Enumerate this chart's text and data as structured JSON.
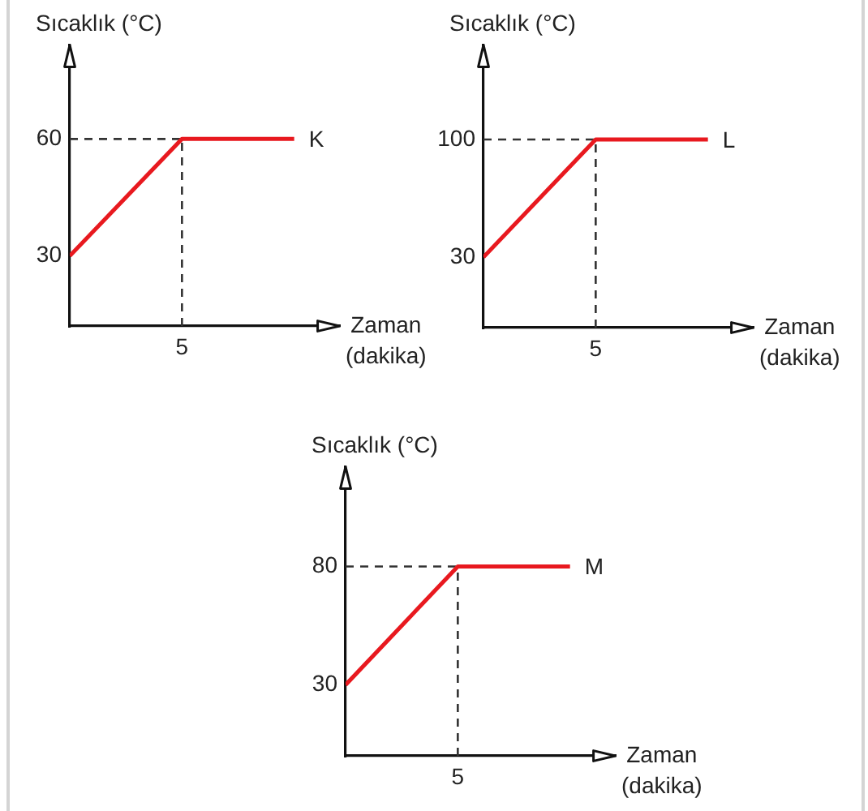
{
  "chart_data": [
    {
      "type": "line",
      "ylabel": "Sıcaklık (°C)",
      "xlabel": "Zaman (dakika)",
      "categories": [
        null,
        "5",
        null
      ],
      "series": [
        {
          "name": "K",
          "color": "#e8191f",
          "values": [
            30,
            60,
            60
          ]
        }
      ],
      "ylim": [
        12,
        84
      ],
      "yticks": [
        30,
        60
      ],
      "ref_lines": [
        {
          "axis": "x",
          "value": "5",
          "color": "#333333",
          "line_style": "dashed"
        },
        {
          "axis": "y",
          "value": 60,
          "color": "#333333",
          "line_style": "dashed"
        }
      ]
    },
    {
      "type": "line",
      "ylabel": "Sıcaklık (°C)",
      "xlabel": "Zaman (dakika)",
      "categories": [
        null,
        "5",
        null
      ],
      "series": [
        {
          "name": "L",
          "color": "#e8191f",
          "values": [
            30,
            100,
            100
          ]
        }
      ],
      "ylim": [
        -12,
        156
      ],
      "yticks": [
        30,
        100
      ],
      "ref_lines": [
        {
          "axis": "x",
          "value": "5",
          "color": "#333333",
          "line_style": "dashed"
        },
        {
          "axis": "y",
          "value": 100,
          "color": "#333333",
          "line_style": "dashed"
        }
      ]
    },
    {
      "type": "line",
      "ylabel": "Sıcaklık (°C)",
      "xlabel": "Zaman (dakika)",
      "categories": [
        null,
        "5",
        null
      ],
      "series": [
        {
          "name": "M",
          "color": "#e8191f",
          "values": [
            30,
            80,
            80
          ]
        }
      ],
      "ylim": [
        0,
        122
      ],
      "yticks": [
        30,
        80
      ],
      "ref_lines": [
        {
          "axis": "x",
          "value": "5",
          "color": "#333333",
          "line_style": "dashed"
        },
        {
          "axis": "y",
          "value": 80,
          "color": "#333333",
          "line_style": "dashed"
        }
      ]
    }
  ]
}
